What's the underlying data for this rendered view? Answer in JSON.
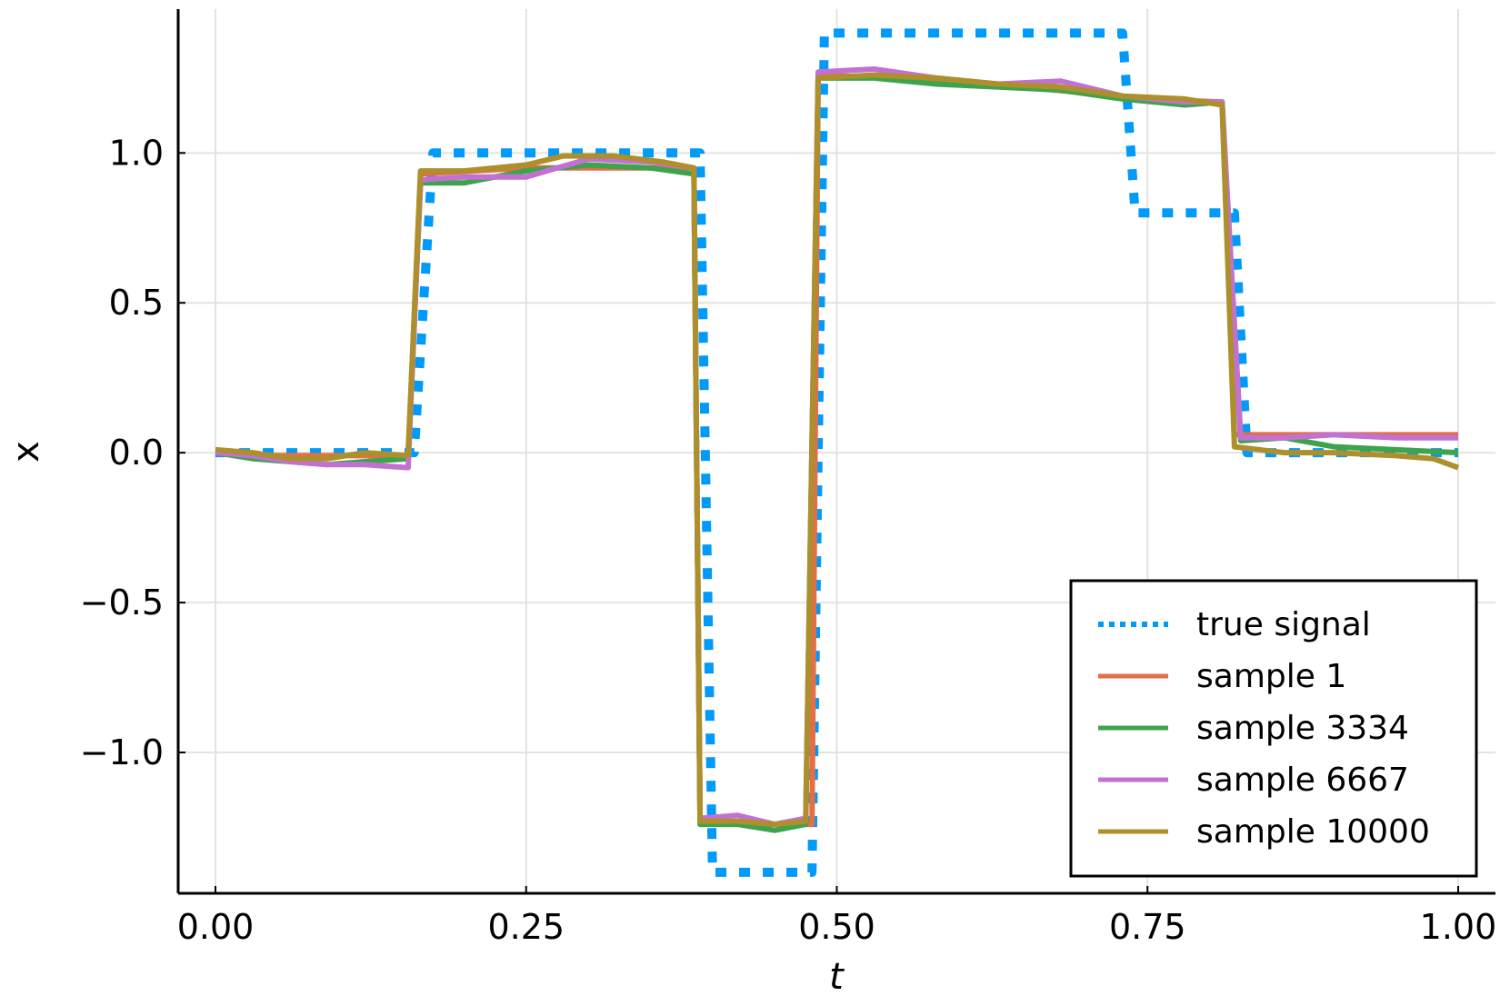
{
  "chart_data": {
    "type": "line",
    "title": "",
    "xlabel": "t",
    "ylabel": "x",
    "xlim": [
      -0.03,
      1.03
    ],
    "ylim": [
      -1.47,
      1.48
    ],
    "xticks": [
      0.0,
      0.25,
      0.5,
      0.75,
      1.0
    ],
    "xtick_labels": [
      "0.00",
      "0.25",
      "0.50",
      "0.75",
      "1.00"
    ],
    "yticks": [
      -1.0,
      -0.5,
      0.0,
      0.5,
      1.0
    ],
    "ytick_labels": [
      "−1.0",
      "−0.5",
      "0.0",
      "0.5",
      "1.0"
    ],
    "grid": true,
    "legend_position": "bottom-right",
    "series": [
      {
        "name": "true signal",
        "color": "#009AFA",
        "style": "dotted",
        "x": [
          0.0,
          0.16,
          0.175,
          0.39,
          0.4,
          0.48,
          0.49,
          0.73,
          0.74,
          0.82,
          0.83,
          1.0
        ],
        "y": [
          0.0,
          0.0,
          1.0,
          1.0,
          -1.4,
          -1.4,
          1.4,
          1.4,
          0.8,
          0.8,
          0.0,
          0.0
        ]
      },
      {
        "name": "sample 1",
        "color": "#E26F46",
        "style": "solid",
        "x": [
          0.0,
          0.05,
          0.1,
          0.155,
          0.165,
          0.25,
          0.38,
          0.385,
          0.39,
          0.43,
          0.475,
          0.48,
          0.485,
          0.55,
          0.65,
          0.75,
          0.81,
          0.82,
          0.9,
          1.0
        ],
        "y": [
          0.0,
          -0.01,
          -0.01,
          -0.01,
          0.93,
          0.95,
          0.95,
          0.95,
          -1.23,
          -1.24,
          -1.24,
          -1.24,
          1.26,
          1.25,
          1.22,
          1.18,
          1.17,
          0.06,
          0.06,
          0.06
        ]
      },
      {
        "name": "sample 3334",
        "color": "#3DA44D",
        "style": "solid",
        "x": [
          0.0,
          0.03,
          0.06,
          0.09,
          0.12,
          0.155,
          0.165,
          0.2,
          0.25,
          0.3,
          0.35,
          0.385,
          0.39,
          0.42,
          0.45,
          0.475,
          0.485,
          0.53,
          0.58,
          0.63,
          0.68,
          0.73,
          0.78,
          0.81,
          0.825,
          0.86,
          0.9,
          0.95,
          1.0
        ],
        "y": [
          0.0,
          -0.02,
          -0.03,
          -0.04,
          -0.03,
          -0.02,
          0.9,
          0.9,
          0.94,
          0.96,
          0.95,
          0.93,
          -1.24,
          -1.24,
          -1.26,
          -1.24,
          1.25,
          1.25,
          1.23,
          1.22,
          1.21,
          1.18,
          1.16,
          1.17,
          0.04,
          0.05,
          0.02,
          0.01,
          0.0
        ]
      },
      {
        "name": "sample 6667",
        "color": "#C271D2",
        "style": "solid",
        "x": [
          0.0,
          0.03,
          0.06,
          0.09,
          0.12,
          0.155,
          0.165,
          0.2,
          0.25,
          0.3,
          0.35,
          0.385,
          0.39,
          0.42,
          0.45,
          0.475,
          0.485,
          0.53,
          0.58,
          0.63,
          0.68,
          0.73,
          0.78,
          0.81,
          0.825,
          0.86,
          0.9,
          0.95,
          1.0
        ],
        "y": [
          0.0,
          -0.01,
          -0.03,
          -0.04,
          -0.04,
          -0.05,
          0.91,
          0.92,
          0.92,
          0.98,
          0.97,
          0.95,
          -1.22,
          -1.21,
          -1.24,
          -1.22,
          1.27,
          1.28,
          1.25,
          1.23,
          1.24,
          1.19,
          1.17,
          1.17,
          0.05,
          0.05,
          0.06,
          0.05,
          0.05
        ]
      },
      {
        "name": "sample 10000",
        "color": "#AD8F2C",
        "style": "solid",
        "x": [
          0.0,
          0.03,
          0.06,
          0.09,
          0.12,
          0.155,
          0.165,
          0.2,
          0.25,
          0.28,
          0.32,
          0.36,
          0.385,
          0.39,
          0.42,
          0.45,
          0.475,
          0.485,
          0.53,
          0.58,
          0.63,
          0.68,
          0.73,
          0.78,
          0.81,
          0.82,
          0.86,
          0.9,
          0.95,
          0.98,
          1.0
        ],
        "y": [
          0.01,
          0.0,
          -0.02,
          -0.02,
          0.0,
          -0.01,
          0.94,
          0.94,
          0.96,
          0.99,
          0.99,
          0.97,
          0.95,
          -1.23,
          -1.23,
          -1.24,
          -1.23,
          1.25,
          1.26,
          1.25,
          1.23,
          1.22,
          1.19,
          1.18,
          1.16,
          0.02,
          0.0,
          0.0,
          -0.01,
          -0.02,
          -0.05
        ]
      }
    ]
  }
}
